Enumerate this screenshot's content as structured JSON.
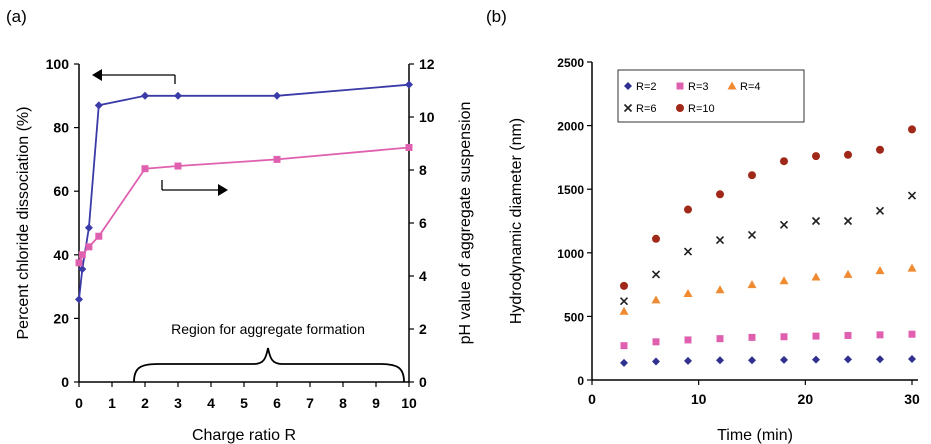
{
  "panel_labels": [
    "(a)",
    "(b)"
  ],
  "chart_data": [
    {
      "type": "line",
      "xlabel": "Charge ratio R",
      "ylabel": "Percent chloride dissociation (%)",
      "y2label": "pH value of aggregate suspension",
      "xlim": [
        0,
        10
      ],
      "ylim": [
        0,
        100
      ],
      "y2lim": [
        0,
        12
      ],
      "xticks": [
        "0",
        "1",
        "2",
        "3",
        "4",
        "5",
        "6",
        "7",
        "8",
        "9",
        "10"
      ],
      "yticks": [
        "0",
        "20",
        "40",
        "60",
        "80",
        "100"
      ],
      "y2ticks": [
        "0",
        "2",
        "4",
        "6",
        "8",
        "10",
        "12"
      ],
      "annotation": "Region for aggregate formation",
      "grid": false,
      "series": [
        {
          "axis": "left",
          "color": "#3a3aa8",
          "marker": "diamond",
          "x": [
            0,
            0.1,
            0.3,
            0.6,
            2,
            3,
            6,
            10
          ],
          "y": [
            26,
            35.5,
            48.5,
            87,
            90,
            90,
            90,
            93.5
          ]
        },
        {
          "axis": "right",
          "color": "#e060b0",
          "marker": "square",
          "x": [
            0,
            0.1,
            0.3,
            0.6,
            2,
            3,
            6,
            10
          ],
          "y": [
            4.5,
            4.8,
            5.1,
            5.5,
            8.05,
            8.15,
            8.4,
            8.85
          ]
        }
      ]
    },
    {
      "type": "scatter",
      "xlabel": "Time (min)",
      "ylabel": "Hydrodynamic diameter (nm)",
      "xlim": [
        0,
        30
      ],
      "ylim": [
        0,
        2500
      ],
      "xticks": [
        "0",
        "10",
        "20",
        "30"
      ],
      "yticks": [
        "0",
        "500",
        "1000",
        "1500",
        "2000",
        "2500"
      ],
      "legend_position": "top-left",
      "grid": false,
      "x": [
        3,
        6,
        9,
        12,
        15,
        18,
        21,
        24,
        27,
        30
      ],
      "series": [
        {
          "name": "R=2",
          "marker": "diamond",
          "color": "#303090",
          "values": [
            135,
            145,
            150,
            155,
            155,
            158,
            160,
            162,
            163,
            165
          ]
        },
        {
          "name": "R=3",
          "marker": "square",
          "color": "#e060b0",
          "values": [
            270,
            300,
            315,
            325,
            335,
            340,
            345,
            350,
            355,
            360
          ]
        },
        {
          "name": "R=4",
          "marker": "triangle",
          "color": "#f08a30",
          "values": [
            540,
            630,
            680,
            710,
            750,
            780,
            810,
            830,
            860,
            880
          ]
        },
        {
          "name": "R=6",
          "marker": "x",
          "color": "#202020",
          "values": [
            620,
            830,
            1010,
            1100,
            1140,
            1220,
            1250,
            1250,
            1330,
            1450
          ]
        },
        {
          "name": "R=10",
          "marker": "circle",
          "color": "#a02818",
          "values": [
            740,
            1110,
            1340,
            1460,
            1610,
            1720,
            1760,
            1770,
            1810,
            1970
          ]
        }
      ]
    }
  ]
}
